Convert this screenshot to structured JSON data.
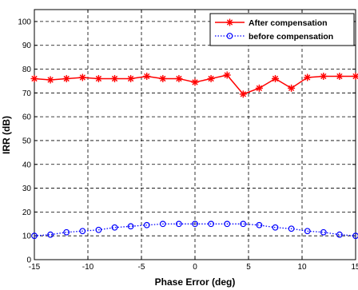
{
  "chart_data": {
    "type": "line",
    "title": "",
    "xlabel": "Phase Error (deg)",
    "ylabel": "IRR (dB)",
    "xlim": [
      -15,
      15
    ],
    "ylim": [
      0,
      105
    ],
    "xticks": [
      -15,
      -10,
      -5,
      0,
      5,
      10,
      15
    ],
    "yticks": [
      0,
      10,
      20,
      30,
      40,
      50,
      60,
      70,
      80,
      90,
      100
    ],
    "x_tick_labels": [
      "-15",
      "-10",
      "-5",
      "0",
      "5",
      "10",
      "15"
    ],
    "y_tick_labels": [
      "0",
      "10",
      "20",
      "30",
      "40",
      "50",
      "60",
      "70",
      "80",
      "90",
      "100"
    ],
    "grid": true,
    "legend_position": "top-right",
    "x": [
      -15,
      -13.5,
      -12,
      -10.5,
      -9,
      -7.5,
      -6,
      -4.5,
      -3,
      -1.5,
      0,
      1.5,
      3,
      4.5,
      6,
      7.5,
      9,
      10.5,
      12,
      13.5,
      15
    ],
    "series": [
      {
        "name": "After compensation",
        "color": "#ff0000",
        "line_style": "solid",
        "marker": "star",
        "values": [
          76,
          75.5,
          76,
          76.5,
          76,
          76,
          76,
          77,
          76,
          76,
          74.5,
          76,
          77.5,
          69.5,
          72,
          76,
          72,
          76.5,
          77,
          77,
          77
        ]
      },
      {
        "name": "before compensation",
        "color": "#0000ff",
        "line_style": "dotted",
        "marker": "circle",
        "values": [
          10,
          10.5,
          11.5,
          12,
          12.5,
          13.5,
          14,
          14.5,
          15,
          15,
          15,
          15,
          15,
          15,
          14.5,
          13.5,
          13,
          12,
          11.5,
          10.5,
          10
        ]
      }
    ]
  }
}
